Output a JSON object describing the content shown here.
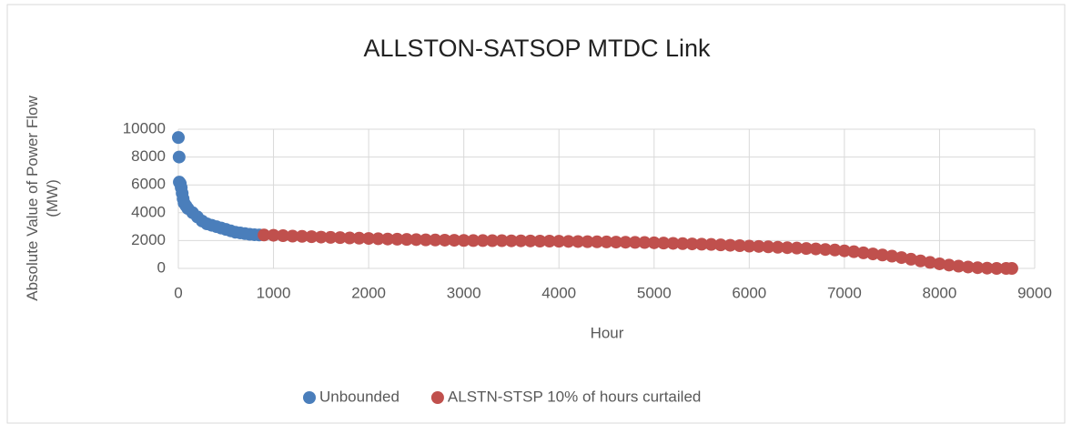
{
  "chart_data": {
    "type": "scatter",
    "title": "ALLSTON-SATSOP MTDC Link",
    "xlabel": "Hour",
    "ylabel": "Absolute Value of Power Flow (MW)",
    "xlim": [
      0,
      9000
    ],
    "xticks": [
      0,
      1000,
      2000,
      3000,
      4000,
      5000,
      6000,
      7000,
      8000,
      9000
    ],
    "ylim": [
      0,
      10000
    ],
    "yticks": [
      0,
      2000,
      4000,
      6000,
      8000,
      10000
    ],
    "grid": true,
    "legend": "bottom",
    "series": [
      {
        "name": "Unbounded",
        "color": "#4a7ebb",
        "x": [
          0,
          8,
          10,
          20,
          30,
          40,
          50,
          60,
          80,
          100,
          150,
          200,
          250,
          300,
          350,
          400,
          450,
          500,
          550,
          600,
          650,
          700,
          750,
          800,
          850
        ],
        "values": [
          9400,
          8000,
          6200,
          6100,
          5800,
          5400,
          5000,
          4700,
          4500,
          4300,
          4000,
          3700,
          3400,
          3200,
          3100,
          3000,
          2900,
          2800,
          2700,
          2600,
          2550,
          2500,
          2450,
          2420,
          2400
        ]
      },
      {
        "name": "ALSTN-STSP 10% of hours curtailed",
        "color": "#c0504d",
        "x": [
          900,
          1000,
          1100,
          1200,
          1300,
          1400,
          1500,
          1600,
          1700,
          1800,
          1900,
          2000,
          2100,
          2200,
          2300,
          2400,
          2500,
          2600,
          2700,
          2800,
          2900,
          3000,
          3100,
          3200,
          3300,
          3400,
          3500,
          3600,
          3700,
          3800,
          3900,
          4000,
          4100,
          4200,
          4300,
          4400,
          4500,
          4600,
          4700,
          4800,
          4900,
          5000,
          5100,
          5200,
          5300,
          5400,
          5500,
          5600,
          5700,
          5800,
          5900,
          6000,
          6100,
          6200,
          6300,
          6400,
          6500,
          6600,
          6700,
          6800,
          6900,
          7000,
          7100,
          7200,
          7300,
          7400,
          7500,
          7600,
          7700,
          7800,
          7900,
          8000,
          8100,
          8200,
          8300,
          8400,
          8500,
          8600,
          8700,
          8760
        ],
        "values": [
          2400,
          2380,
          2350,
          2320,
          2300,
          2280,
          2250,
          2230,
          2210,
          2190,
          2170,
          2150,
          2130,
          2110,
          2100,
          2080,
          2070,
          2050,
          2040,
          2030,
          2020,
          2010,
          2000,
          2000,
          1990,
          1990,
          1980,
          1980,
          1970,
          1960,
          1960,
          1950,
          1940,
          1930,
          1920,
          1910,
          1900,
          1890,
          1880,
          1870,
          1860,
          1840,
          1820,
          1800,
          1780,
          1760,
          1740,
          1720,
          1690,
          1660,
          1630,
          1600,
          1580,
          1550,
          1520,
          1490,
          1460,
          1430,
          1400,
          1360,
          1320,
          1260,
          1200,
          1120,
          1040,
          960,
          880,
          780,
          660,
          540,
          430,
          330,
          240,
          160,
          100,
          50,
          20,
          0,
          0,
          0
        ]
      }
    ]
  }
}
